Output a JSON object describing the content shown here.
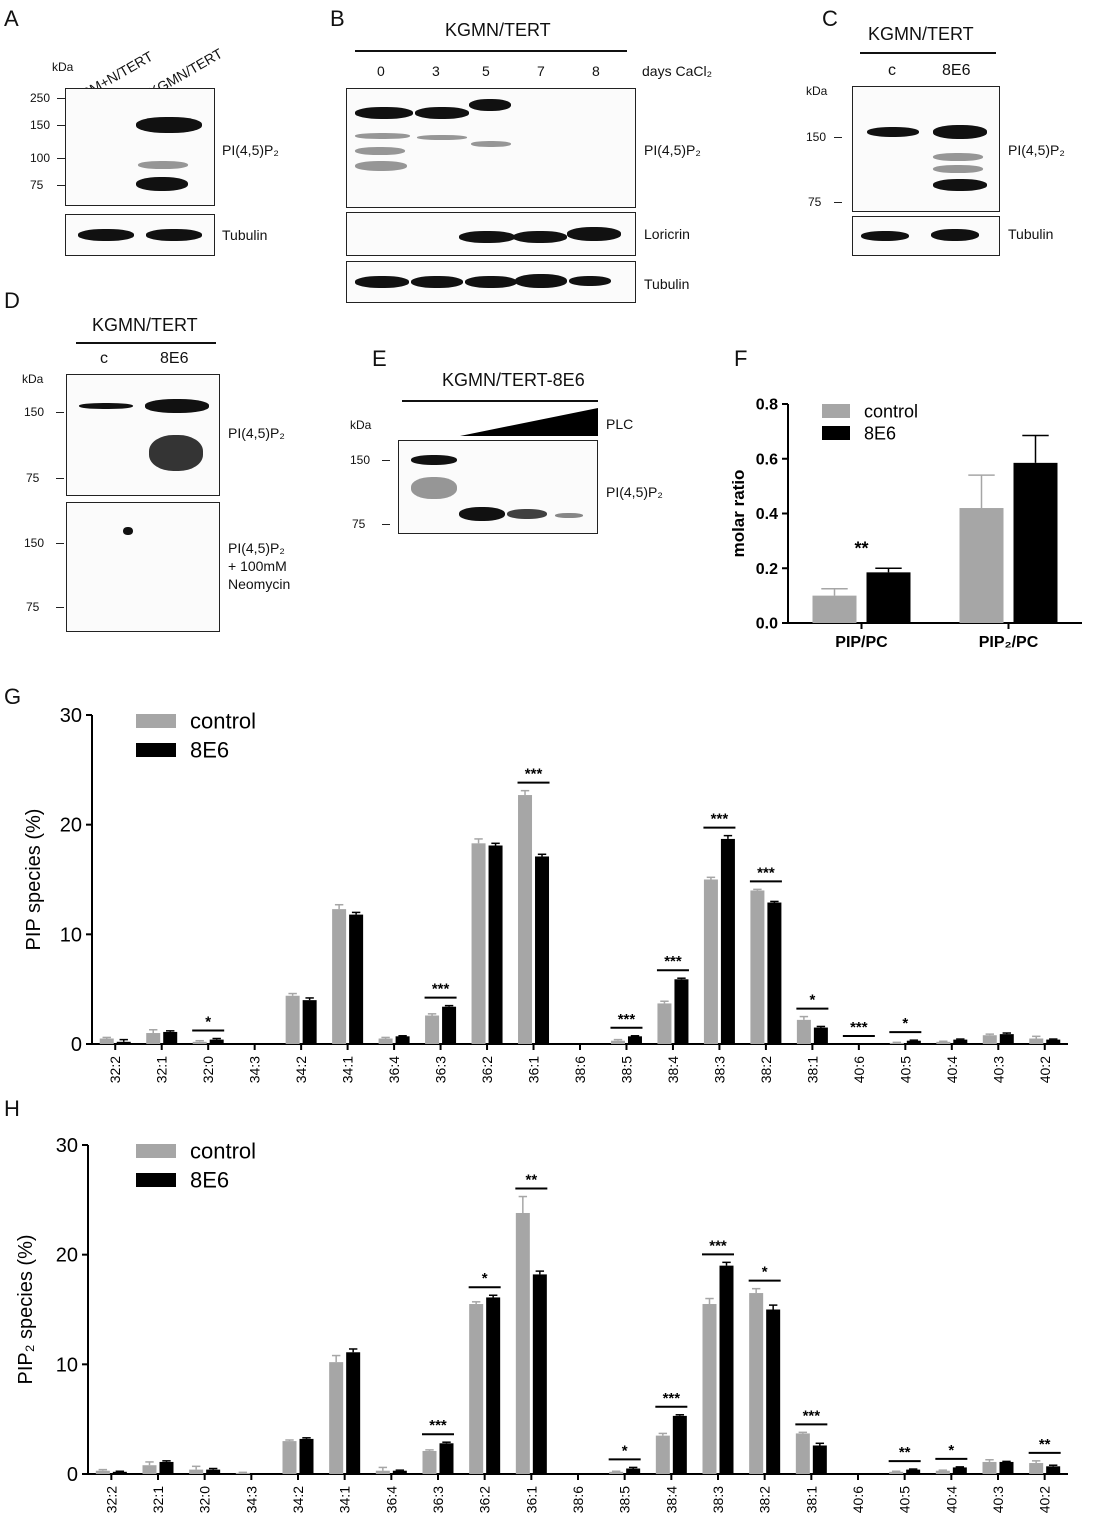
{
  "panels": {
    "A": {
      "letter": "A",
      "kda": "kDa",
      "lanes": [
        "RM+N/TERT",
        "KGMN/TERT"
      ],
      "markers": [
        "250",
        "150",
        "100",
        "75"
      ],
      "label": "PI(4,5)P₂",
      "loading": "Tubulin"
    },
    "B": {
      "letter": "B",
      "header": "KGMN/TERT",
      "days": [
        "0",
        "3",
        "5",
        "7",
        "8"
      ],
      "days_label": "days CaCl₂",
      "label": "PI(4,5)P₂",
      "marker": "Loricrin",
      "loading": "Tubulin"
    },
    "C": {
      "letter": "C",
      "header": "KGMN/TERT",
      "kda": "kDa",
      "lanes": [
        "c",
        "8E6"
      ],
      "markers": [
        "150",
        "75"
      ],
      "label": "PI(4,5)P₂",
      "loading": "Tubulin"
    },
    "D": {
      "letter": "D",
      "header": "KGMN/TERT",
      "kda": "kDa",
      "lanes": [
        "c",
        "8E6"
      ],
      "markers": [
        "150",
        "75"
      ],
      "label": "PI(4,5)P₂",
      "markers2": [
        "150",
        "75"
      ],
      "label2": "PI(4,5)P₂",
      "label2b": "+ 100mM",
      "label2c": "Neomycin"
    },
    "E": {
      "letter": "E",
      "header": "KGMN/TERT-8E6",
      "kda": "kDa",
      "plc": "PLC",
      "markers": [
        "150",
        "75"
      ],
      "label": "PI(4,5)P₂"
    },
    "F": {
      "letter": "F"
    },
    "G": {
      "letter": "G"
    },
    "H": {
      "letter": "H"
    }
  },
  "colors": {
    "control": "#a6a6a6",
    "e6": "#000000"
  },
  "chart_data": [
    {
      "type": "bar",
      "panel": "F",
      "categories": [
        "PIP/PC",
        "PIP₂/PC"
      ],
      "series": [
        {
          "name": "control",
          "values": [
            0.1,
            0.42
          ],
          "errors": [
            0.025,
            0.12
          ]
        },
        {
          "name": "8E6",
          "values": [
            0.185,
            0.585
          ],
          "errors": [
            0.015,
            0.1
          ]
        }
      ],
      "ylabel": "molar ratio",
      "ylim": [
        0,
        0.8
      ],
      "yticks": [
        "0.0",
        "0.2",
        "0.4",
        "0.6",
        "0.8"
      ],
      "annotations": [
        {
          "category": "PIP/PC",
          "text": "**"
        }
      ],
      "legend": "top-left"
    },
    {
      "type": "bar",
      "panel": "G",
      "categories": [
        "32:2",
        "32:1",
        "32:0",
        "34:3",
        "34:2",
        "34:1",
        "36:4",
        "36:3",
        "36:2",
        "36:1",
        "38:6",
        "38:5",
        "38:4",
        "38:3",
        "38:2",
        "38:1",
        "40:6",
        "40:5",
        "40:4",
        "40:3",
        "40:2"
      ],
      "series": [
        {
          "name": "control",
          "values": [
            0.5,
            1.0,
            0.2,
            0,
            4.4,
            12.3,
            0.5,
            2.6,
            18.3,
            22.7,
            0,
            0.3,
            3.7,
            15.0,
            14.0,
            2.2,
            0,
            0.1,
            0.2,
            0.8,
            0.5
          ],
          "errors": [
            0.1,
            0.3,
            0.1,
            0,
            0.2,
            0.4,
            0.1,
            0.15,
            0.4,
            0.4,
            0,
            0.1,
            0.2,
            0.2,
            0.1,
            0.3,
            0,
            0.05,
            0.05,
            0.1,
            0.2
          ]
        },
        {
          "name": "8E6",
          "values": [
            0.2,
            1.1,
            0.4,
            0,
            4.0,
            11.8,
            0.7,
            3.4,
            18.1,
            17.1,
            0,
            0.7,
            5.9,
            18.7,
            12.9,
            1.5,
            0,
            0.3,
            0.4,
            0.9,
            0.4
          ],
          "errors": [
            0.2,
            0.1,
            0.1,
            0,
            0.2,
            0.2,
            0.05,
            0.1,
            0.2,
            0.2,
            0,
            0.05,
            0.1,
            0.3,
            0.1,
            0.1,
            0,
            0.05,
            0.05,
            0.1,
            0.05
          ]
        }
      ],
      "ylabel": "PIP species (%)",
      "ylim": [
        0,
        30
      ],
      "yticks": [
        "0",
        "10",
        "20",
        "30"
      ],
      "annotations": [
        {
          "category": "32:0",
          "text": "*"
        },
        {
          "category": "36:3",
          "text": "***"
        },
        {
          "category": "36:1",
          "text": "***"
        },
        {
          "category": "38:5",
          "text": "***"
        },
        {
          "category": "38:4",
          "text": "***"
        },
        {
          "category": "38:3",
          "text": "***"
        },
        {
          "category": "38:2",
          "text": "***"
        },
        {
          "category": "38:1",
          "text": "*"
        },
        {
          "category": "40:6",
          "text": "***"
        },
        {
          "category": "40:5",
          "text": "*"
        }
      ],
      "legend": "top-left"
    },
    {
      "type": "bar",
      "panel": "H",
      "categories": [
        "32:2",
        "32:1",
        "32:0",
        "34:3",
        "34:2",
        "34:1",
        "36:4",
        "36:3",
        "36:2",
        "36:1",
        "38:6",
        "38:5",
        "38:4",
        "38:3",
        "38:2",
        "38:1",
        "40:6",
        "40:5",
        "40:4",
        "40:3",
        "40:2"
      ],
      "series": [
        {
          "name": "control",
          "values": [
            0.3,
            0.8,
            0.4,
            0.1,
            3.0,
            10.2,
            0.3,
            2.1,
            15.5,
            23.8,
            0,
            0.2,
            3.5,
            15.5,
            16.5,
            3.7,
            0,
            0.2,
            0.3,
            1.1,
            1.0
          ],
          "errors": [
            0.1,
            0.3,
            0.3,
            0.05,
            0.1,
            0.6,
            0.3,
            0.1,
            0.2,
            1.5,
            0,
            0.05,
            0.2,
            0.5,
            0.4,
            0.1,
            0,
            0.05,
            0.05,
            0.2,
            0.2
          ]
        },
        {
          "name": "8E6",
          "values": [
            0.2,
            1.1,
            0.4,
            0,
            3.2,
            11.1,
            0.3,
            2.8,
            16.1,
            18.2,
            0,
            0.5,
            5.3,
            19.0,
            15.0,
            2.6,
            0,
            0.4,
            0.6,
            1.1,
            0.7
          ],
          "errors": [
            0.05,
            0.1,
            0.1,
            0,
            0.1,
            0.3,
            0.05,
            0.1,
            0.2,
            0.3,
            0,
            0.1,
            0.1,
            0.3,
            0.4,
            0.2,
            0,
            0.05,
            0.05,
            0.05,
            0.1
          ]
        }
      ],
      "ylabel": "PIP₂ species (%)",
      "ylim": [
        0,
        30
      ],
      "yticks": [
        "0",
        "10",
        "20",
        "30"
      ],
      "annotations": [
        {
          "category": "36:3",
          "text": "***"
        },
        {
          "category": "36:2",
          "text": "*"
        },
        {
          "category": "36:1",
          "text": "**"
        },
        {
          "category": "38:5",
          "text": "*"
        },
        {
          "category": "38:4",
          "text": "***"
        },
        {
          "category": "38:3",
          "text": "***"
        },
        {
          "category": "38:2",
          "text": "*"
        },
        {
          "category": "38:1",
          "text": "***"
        },
        {
          "category": "40:5",
          "text": "**"
        },
        {
          "category": "40:4",
          "text": "*"
        },
        {
          "category": "40:2",
          "text": "**"
        }
      ],
      "legend": "top-left"
    }
  ]
}
